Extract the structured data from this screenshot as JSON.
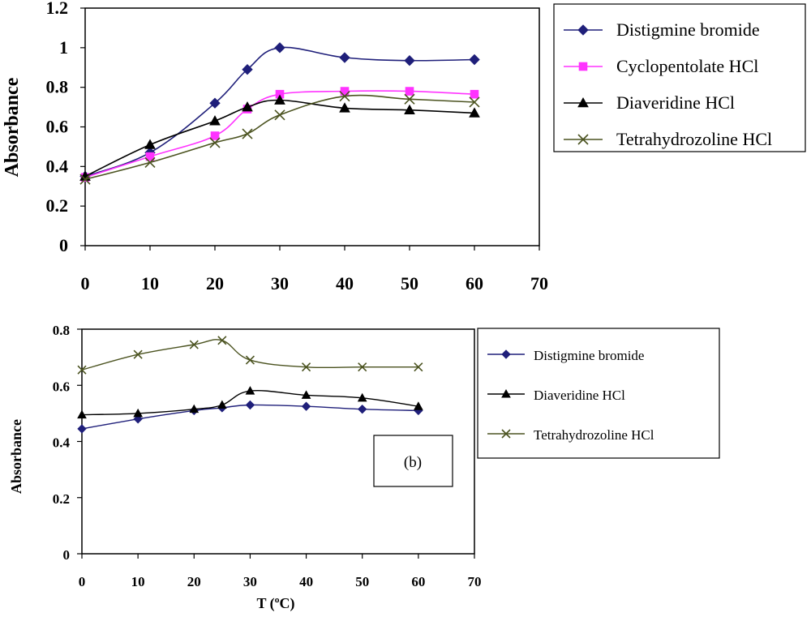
{
  "chart_data": [
    {
      "type": "line",
      "panel": "a",
      "title": "",
      "xlabel": "",
      "ylabel": "Absorbance",
      "xlim": [
        0,
        70
      ],
      "ylim": [
        0,
        1.2
      ],
      "xticks": [
        0,
        10,
        20,
        30,
        40,
        50,
        60,
        70
      ],
      "xtick_labels": [
        "0",
        "10",
        "20",
        "30",
        "40",
        "50",
        "60",
        "70"
      ],
      "yticks": [
        0,
        0.2,
        0.4,
        0.6,
        0.8,
        1.0,
        1.2
      ],
      "ytick_labels": [
        "0",
        "0.2",
        "0.4",
        "0.6",
        "0.8",
        "1",
        "1.2"
      ],
      "grid": false,
      "legend_position": "right",
      "series": [
        {
          "name": "Distigmine bromide",
          "color": "#1f1f7a",
          "marker": "diamond",
          "x": [
            0,
            10,
            20,
            25,
            30,
            40,
            50,
            60
          ],
          "y": [
            0.35,
            0.47,
            0.72,
            0.89,
            1.0,
            0.95,
            0.935,
            0.94
          ]
        },
        {
          "name": "Cyclopentolate HCl",
          "color": "#ff33ff",
          "marker": "square",
          "x": [
            0,
            10,
            20,
            25,
            30,
            40,
            50,
            60
          ],
          "y": [
            0.345,
            0.45,
            0.555,
            0.69,
            0.765,
            0.78,
            0.78,
            0.765
          ]
        },
        {
          "name": "Diaveridine HCl",
          "color": "#000000",
          "marker": "triangle",
          "x": [
            0,
            10,
            20,
            25,
            30,
            40,
            50,
            60
          ],
          "y": [
            0.35,
            0.51,
            0.63,
            0.7,
            0.735,
            0.695,
            0.685,
            0.67
          ]
        },
        {
          "name": "Tetrahydrozoline HCl",
          "color": "#4b5320",
          "marker": "x",
          "x": [
            0,
            10,
            20,
            25,
            30,
            40,
            50,
            60
          ],
          "y": [
            0.335,
            0.42,
            0.52,
            0.565,
            0.66,
            0.755,
            0.74,
            0.725
          ]
        }
      ]
    },
    {
      "type": "line",
      "panel": "b",
      "title": "",
      "xlabel": "T (ºC)",
      "ylabel": "Absorbance",
      "xlim": [
        0,
        70
      ],
      "ylim": [
        0,
        0.8
      ],
      "xticks": [
        0,
        10,
        20,
        30,
        40,
        50,
        60,
        70
      ],
      "xtick_labels": [
        "0",
        "10",
        "20",
        "30",
        "40",
        "50",
        "60",
        "70"
      ],
      "yticks": [
        0,
        0.2,
        0.4,
        0.6,
        0.8
      ],
      "ytick_labels": [
        "0",
        "0.2",
        "0.4",
        "0.6",
        "0.8"
      ],
      "grid": false,
      "legend_position": "right",
      "annotation": "(b)",
      "series": [
        {
          "name": "Distigmine bromide",
          "color": "#1f1f7a",
          "marker": "diamond",
          "x": [
            0,
            10,
            20,
            25,
            30,
            40,
            50,
            60
          ],
          "y": [
            0.445,
            0.48,
            0.51,
            0.52,
            0.53,
            0.525,
            0.515,
            0.51
          ]
        },
        {
          "name": "Diaveridine HCl",
          "color": "#000000",
          "marker": "triangle",
          "x": [
            0,
            10,
            20,
            25,
            30,
            40,
            50,
            60
          ],
          "y": [
            0.495,
            0.5,
            0.515,
            0.53,
            0.58,
            0.565,
            0.555,
            0.525
          ]
        },
        {
          "name": "Tetrahydrozoline HCl",
          "color": "#4b5320",
          "marker": "x",
          "x": [
            0,
            10,
            20,
            25,
            30,
            40,
            50,
            60
          ],
          "y": [
            0.655,
            0.71,
            0.745,
            0.76,
            0.69,
            0.665,
            0.665,
            0.665
          ]
        }
      ]
    }
  ]
}
